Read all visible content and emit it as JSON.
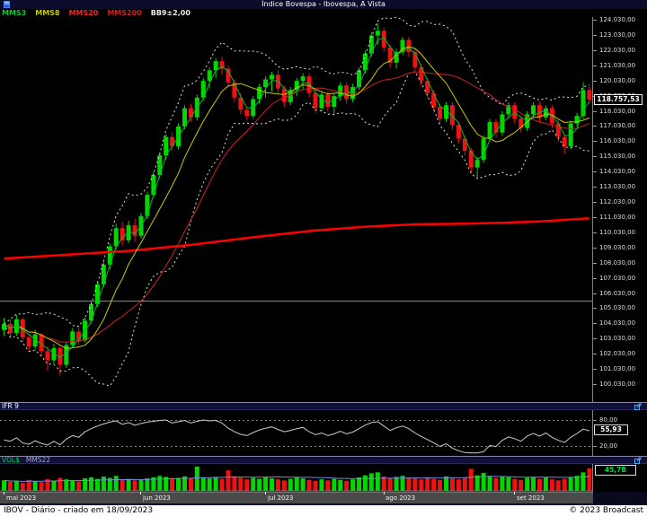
{
  "window": {
    "title": "Índice Bovespa - Ibovespa, A Vista"
  },
  "legend": {
    "items": [
      {
        "label": "MMS3",
        "color": "#00cc33"
      },
      {
        "label": "MMS8",
        "color": "#c8c800"
      },
      {
        "label": "MMS20",
        "color": "#ff2020"
      },
      {
        "label": "MMS200",
        "color": "#d02020"
      },
      {
        "label": "BB9±2,00",
        "color": "#e8e8e8"
      }
    ]
  },
  "price_axis": {
    "last_price_label": "118.757,53"
  },
  "ifr_panel": {
    "title": "IFR 9",
    "level_high_label": "80,00",
    "level_low_label": "20,00",
    "value_label": "55,93"
  },
  "vol_panel": {
    "title": "VOL$",
    "ma_label": "MMS22",
    "value_label": "45,7B"
  },
  "x_axis": {
    "months": [
      {
        "label": "mai 2023",
        "index": 0
      },
      {
        "label": "jun 2023",
        "index": 22
      },
      {
        "label": "jul 2023",
        "index": 42
      },
      {
        "label": "ago 2023",
        "index": 61
      },
      {
        "label": "set 2023",
        "index": 82
      }
    ]
  },
  "status_bar": {
    "left": "IBOV - Diário - criado em 18/09/2023",
    "right": "© 2023 Broadcast"
  },
  "chart_data": {
    "type": "candlestick",
    "symbol": "IBOV",
    "timeframe": "Diário",
    "title": "Índice Bovespa - Ibovespa, A Vista",
    "y_axis": {
      "min": 100030,
      "max": 124030,
      "step": 1000
    },
    "last_price": 118757.53,
    "reference_line": 105500,
    "colors": {
      "up": "#00d800",
      "down": "#f01212",
      "bollinger": "#e0e0e0",
      "mms3": "#00bb33",
      "mms8": "#c8c800",
      "mms20": "#cc2222",
      "mms200": "#ff0000",
      "reference": "#4caf50",
      "ifr_line": "#cccccc",
      "vol_ma": "#7788dd"
    },
    "candles": [
      [
        103600,
        104400,
        103200,
        104000,
        40,
        "g"
      ],
      [
        104000,
        104300,
        103100,
        103400,
        35,
        "r"
      ],
      [
        103400,
        104600,
        103200,
        104300,
        38,
        "g"
      ],
      [
        104300,
        104400,
        102800,
        103100,
        30,
        "r"
      ],
      [
        103100,
        103300,
        102200,
        102500,
        42,
        "r"
      ],
      [
        102500,
        103600,
        102300,
        103300,
        36,
        "g"
      ],
      [
        103300,
        103400,
        101900,
        102200,
        33,
        "r"
      ],
      [
        102200,
        102500,
        100900,
        101600,
        45,
        "r"
      ],
      [
        101600,
        102700,
        101400,
        102400,
        38,
        "g"
      ],
      [
        102400,
        102500,
        100600,
        101300,
        50,
        "r"
      ],
      [
        101300,
        102800,
        101100,
        102600,
        44,
        "g"
      ],
      [
        102600,
        103700,
        102400,
        103500,
        40,
        "g"
      ],
      [
        103500,
        103800,
        102600,
        102900,
        36,
        "r"
      ],
      [
        102900,
        104400,
        102800,
        104200,
        48,
        "g"
      ],
      [
        104200,
        105500,
        104000,
        105300,
        52,
        "g"
      ],
      [
        105300,
        106800,
        105100,
        106600,
        46,
        "g"
      ],
      [
        106600,
        108100,
        106400,
        107900,
        55,
        "g"
      ],
      [
        107900,
        109300,
        107600,
        109100,
        50,
        "g"
      ],
      [
        109100,
        110600,
        108900,
        110300,
        58,
        "g"
      ],
      [
        110300,
        110700,
        109200,
        109500,
        42,
        "r"
      ],
      [
        109500,
        110800,
        109300,
        110500,
        46,
        "g"
      ],
      [
        110500,
        110900,
        109400,
        109800,
        40,
        "r"
      ],
      [
        109800,
        111300,
        109600,
        111100,
        44,
        "g"
      ],
      [
        111100,
        112700,
        110900,
        112500,
        48,
        "g"
      ],
      [
        112500,
        114000,
        112300,
        113800,
        52,
        "g"
      ],
      [
        113800,
        115300,
        113600,
        115100,
        58,
        "g"
      ],
      [
        115100,
        116500,
        114800,
        116300,
        54,
        "g"
      ],
      [
        116300,
        116600,
        115400,
        115700,
        46,
        "r"
      ],
      [
        115700,
        117200,
        115500,
        117000,
        50,
        "g"
      ],
      [
        117000,
        118400,
        116800,
        118200,
        56,
        "g"
      ],
      [
        118200,
        118500,
        117300,
        117600,
        48,
        "r"
      ],
      [
        117600,
        119100,
        117400,
        118900,
        95,
        "g"
      ],
      [
        118900,
        120200,
        118700,
        120000,
        52,
        "g"
      ],
      [
        120000,
        120900,
        119500,
        120700,
        48,
        "g"
      ],
      [
        120700,
        121500,
        120200,
        121300,
        54,
        "g"
      ],
      [
        121300,
        121600,
        120400,
        120800,
        46,
        "r"
      ],
      [
        120800,
        121000,
        119600,
        119900,
        80,
        "r"
      ],
      [
        119900,
        120100,
        118600,
        118900,
        56,
        "r"
      ],
      [
        118900,
        119200,
        117800,
        118100,
        50,
        "r"
      ],
      [
        118100,
        118300,
        117400,
        117700,
        44,
        "r"
      ],
      [
        117700,
        119000,
        117500,
        118800,
        50,
        "g"
      ],
      [
        118800,
        119800,
        118500,
        119600,
        46,
        "g"
      ],
      [
        119600,
        120300,
        118900,
        120100,
        52,
        "g"
      ],
      [
        120100,
        120600,
        119300,
        120400,
        48,
        "g"
      ],
      [
        120400,
        120700,
        119200,
        119500,
        44,
        "r"
      ],
      [
        119500,
        119700,
        118300,
        118600,
        40,
        "r"
      ],
      [
        118600,
        119600,
        118400,
        119400,
        46,
        "g"
      ],
      [
        119400,
        120200,
        119000,
        120000,
        52,
        "g"
      ],
      [
        120000,
        120500,
        119400,
        120300,
        48,
        "g"
      ],
      [
        120300,
        120500,
        118900,
        119200,
        42,
        "r"
      ],
      [
        119200,
        119400,
        117900,
        118200,
        38,
        "r"
      ],
      [
        118200,
        119300,
        118000,
        119100,
        44,
        "g"
      ],
      [
        119100,
        119300,
        118000,
        118300,
        40,
        "r"
      ],
      [
        118300,
        119200,
        117800,
        119000,
        46,
        "g"
      ],
      [
        119000,
        119900,
        118700,
        119700,
        42,
        "g"
      ],
      [
        119700,
        119900,
        118500,
        118800,
        38,
        "r"
      ],
      [
        118800,
        119800,
        118600,
        119600,
        44,
        "g"
      ],
      [
        119600,
        120900,
        119400,
        120700,
        52,
        "g"
      ],
      [
        120700,
        122000,
        120500,
        121800,
        60,
        "g"
      ],
      [
        121800,
        123200,
        121600,
        123000,
        68,
        "g"
      ],
      [
        123000,
        123800,
        122400,
        123300,
        72,
        "g"
      ],
      [
        123300,
        123500,
        121900,
        122200,
        56,
        "r"
      ],
      [
        122200,
        122400,
        120900,
        121200,
        50,
        "r"
      ],
      [
        121200,
        122100,
        120800,
        121900,
        54,
        "g"
      ],
      [
        121900,
        122900,
        121700,
        122700,
        58,
        "g"
      ],
      [
        122700,
        122900,
        121600,
        121900,
        52,
        "r"
      ],
      [
        121900,
        122100,
        120600,
        120900,
        48,
        "r"
      ],
      [
        120900,
        121100,
        119700,
        120000,
        44,
        "r"
      ],
      [
        120000,
        120200,
        118900,
        119200,
        50,
        "r"
      ],
      [
        119200,
        119400,
        118000,
        118300,
        46,
        "r"
      ],
      [
        118300,
        118500,
        117200,
        117500,
        42,
        "r"
      ],
      [
        117500,
        118600,
        117300,
        118400,
        56,
        "g"
      ],
      [
        118400,
        118600,
        116800,
        117100,
        48,
        "r"
      ],
      [
        117100,
        117300,
        115900,
        116200,
        44,
        "r"
      ],
      [
        116200,
        116400,
        115100,
        115400,
        52,
        "r"
      ],
      [
        115400,
        115600,
        113900,
        114300,
        86,
        "r"
      ],
      [
        114300,
        115000,
        113600,
        114800,
        60,
        "g"
      ],
      [
        114800,
        116400,
        114600,
        116200,
        70,
        "g"
      ],
      [
        116200,
        117500,
        116000,
        117300,
        58,
        "g"
      ],
      [
        117300,
        117500,
        116300,
        116600,
        50,
        "r"
      ],
      [
        116600,
        118000,
        116400,
        117800,
        56,
        "g"
      ],
      [
        117800,
        118600,
        117500,
        118400,
        52,
        "g"
      ],
      [
        118400,
        118600,
        117200,
        117500,
        46,
        "r"
      ],
      [
        117500,
        117700,
        116600,
        116900,
        42,
        "r"
      ],
      [
        116900,
        118000,
        116700,
        117800,
        50,
        "g"
      ],
      [
        117800,
        118600,
        117600,
        118400,
        54,
        "g"
      ],
      [
        118400,
        118600,
        117300,
        117600,
        46,
        "r"
      ],
      [
        117600,
        118400,
        117400,
        118200,
        52,
        "g"
      ],
      [
        118200,
        118400,
        116900,
        117200,
        44,
        "r"
      ],
      [
        117200,
        117400,
        116000,
        116300,
        40,
        "r"
      ],
      [
        116300,
        116500,
        115200,
        115700,
        46,
        "r"
      ],
      [
        115700,
        117400,
        115500,
        117200,
        52,
        "g"
      ],
      [
        117200,
        117900,
        117000,
        117700,
        58,
        "g"
      ],
      [
        117700,
        119900,
        117500,
        119400,
        72,
        "g"
      ],
      [
        119400,
        119600,
        118500,
        118757.53,
        88,
        "r"
      ]
    ],
    "mms200_points": [
      [
        0,
        108300
      ],
      [
        10,
        108550
      ],
      [
        20,
        108800
      ],
      [
        30,
        109200
      ],
      [
        40,
        109700
      ],
      [
        50,
        110150
      ],
      [
        58,
        110400
      ],
      [
        66,
        110550
      ],
      [
        74,
        110600
      ],
      [
        80,
        110650
      ],
      [
        86,
        110750
      ],
      [
        90,
        110850
      ],
      [
        94,
        110950
      ]
    ],
    "ifr9": {
      "window": 9,
      "levels": [
        80,
        20
      ],
      "last": 55.93,
      "values": [
        35,
        32,
        40,
        28,
        25,
        33,
        27,
        23,
        32,
        24,
        37,
        45,
        41,
        54,
        61,
        67,
        72,
        76,
        79,
        71,
        75,
        69,
        73,
        76,
        78,
        80,
        81,
        74,
        77,
        80,
        74,
        78,
        81,
        79,
        80,
        74,
        62,
        54,
        48,
        45,
        52,
        58,
        62,
        65,
        59,
        54,
        57,
        61,
        64,
        54,
        47,
        51,
        45,
        49,
        55,
        49,
        53,
        61,
        69,
        75,
        77,
        67,
        57,
        63,
        67,
        61,
        51,
        43,
        36,
        28,
        20,
        26,
        16,
        10,
        6,
        5,
        5,
        8,
        22,
        20,
        34,
        42,
        38,
        32,
        44,
        50,
        44,
        51,
        41,
        34,
        29,
        41,
        50,
        60,
        55.93
      ]
    },
    "volume": {
      "ma_window": 22,
      "last_label": "45,7B"
    }
  }
}
